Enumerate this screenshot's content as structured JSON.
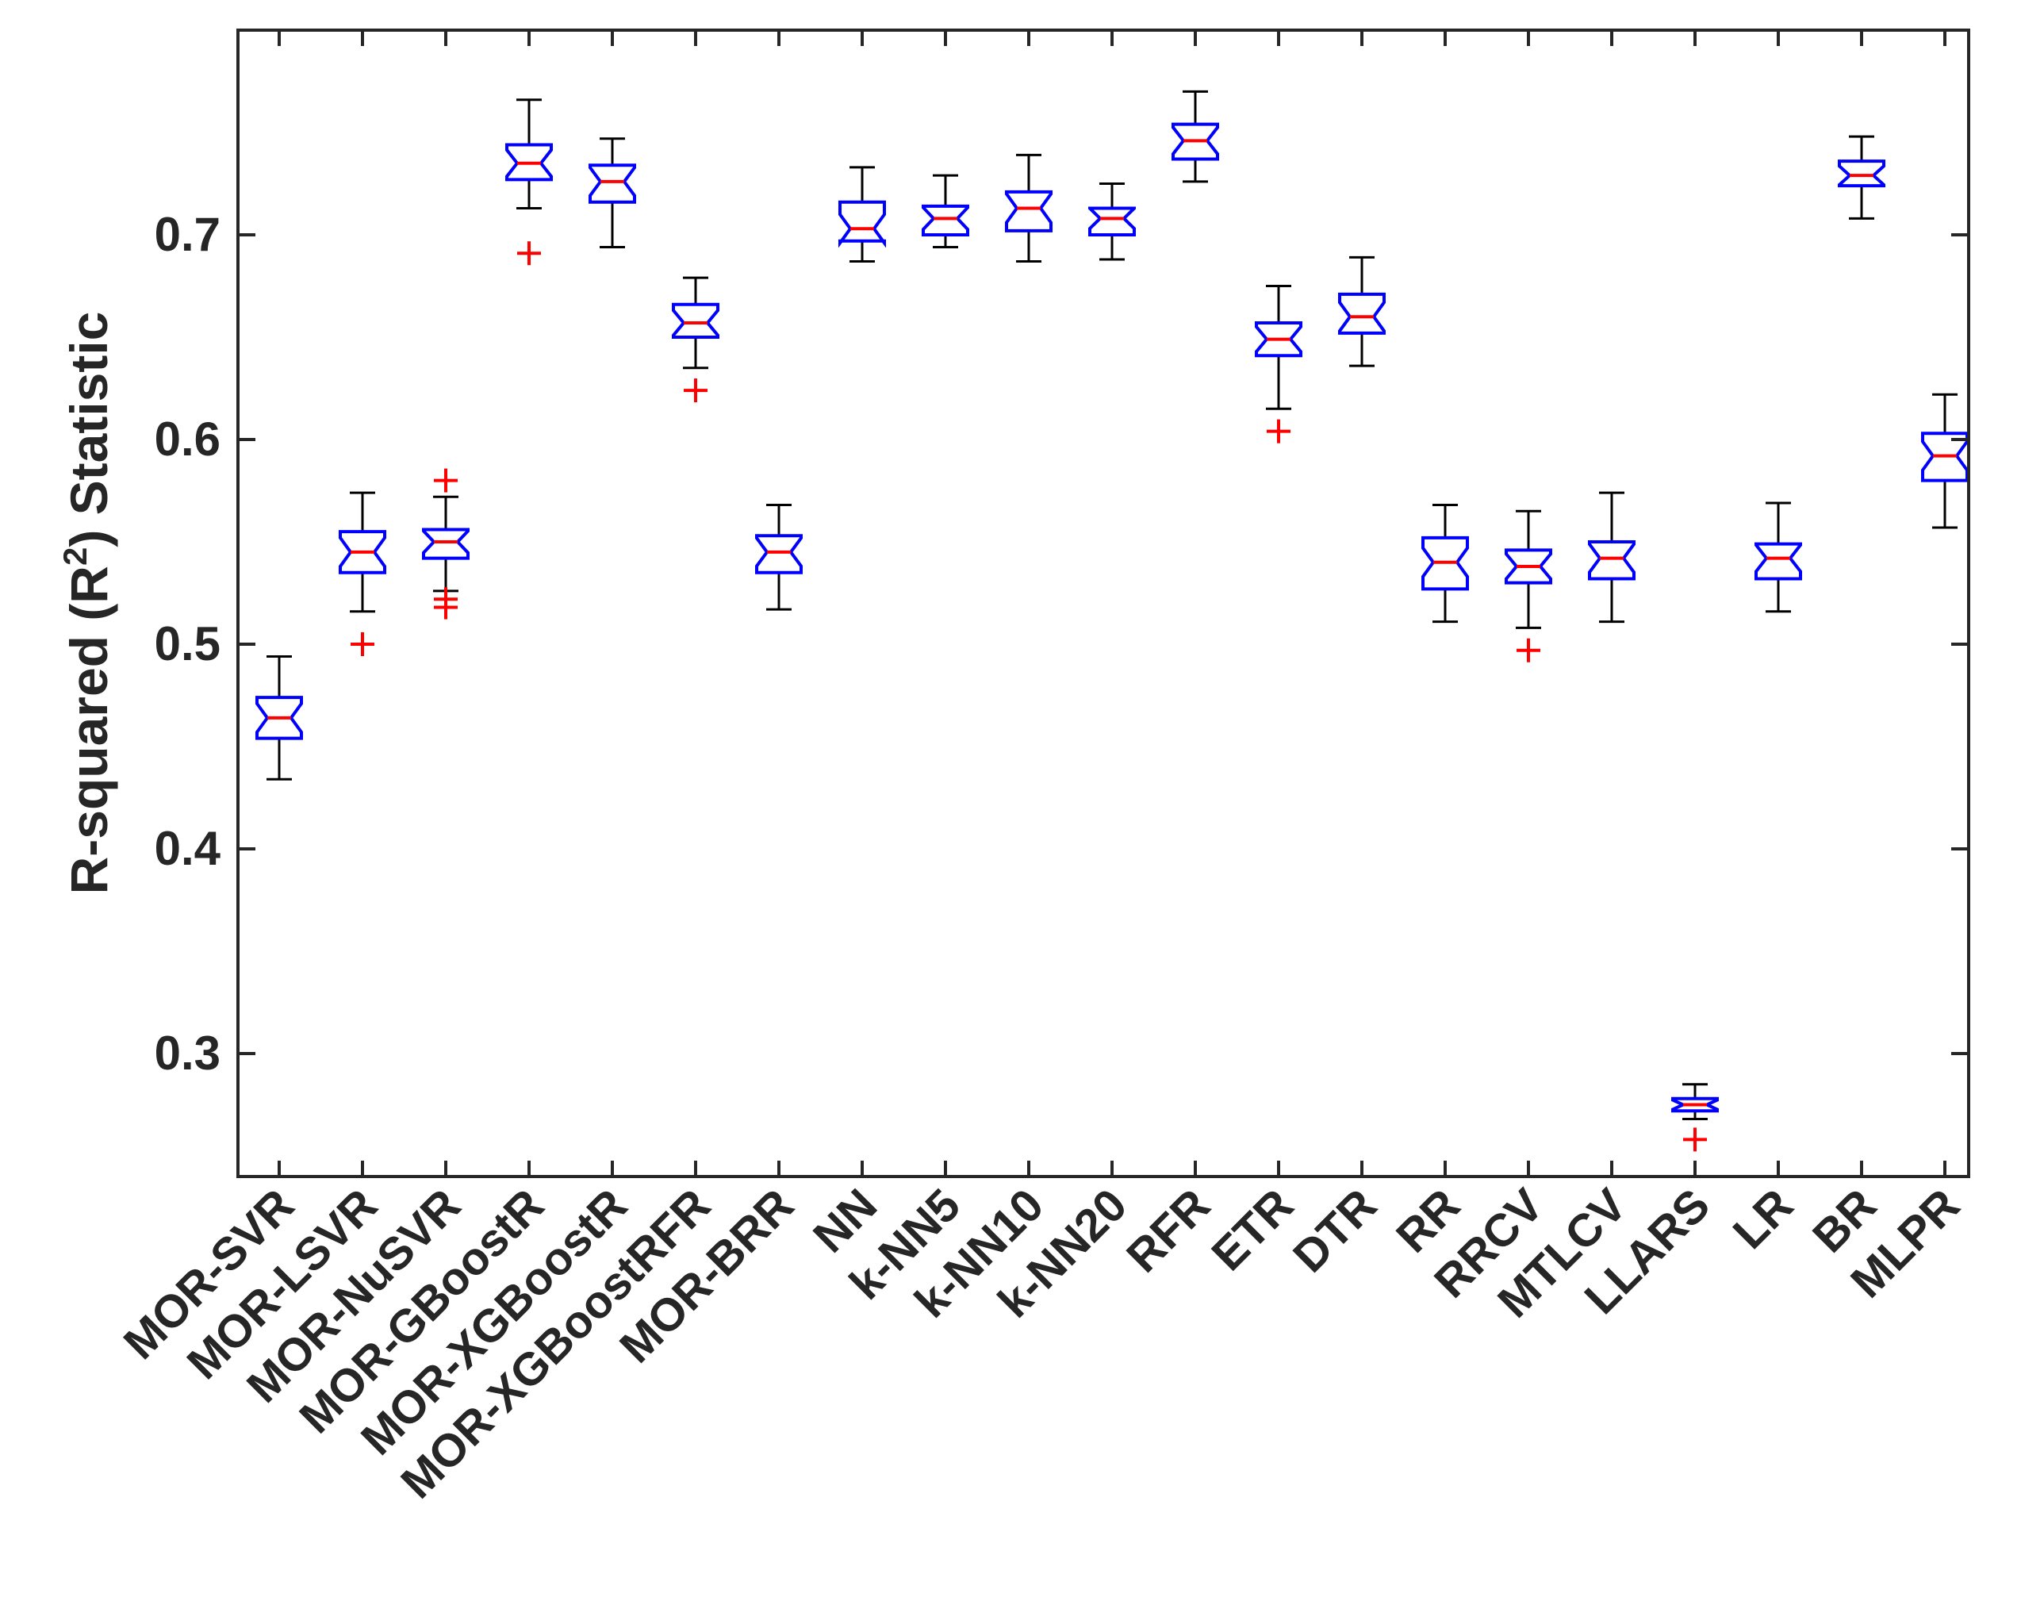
{
  "chart_data": {
    "type": "boxplot",
    "ylabel_parts": [
      "R-squared (R",
      "2",
      ") Statistic"
    ],
    "ylim": [
      0.235,
      0.785
    ],
    "yticks": [
      0.3,
      0.4,
      0.5,
      0.6,
      0.7
    ],
    "ytick_labels": [
      "0.3",
      "0.4",
      "0.5",
      "0.6",
      "0.7"
    ],
    "colors": {
      "box": "#0000ff",
      "median": "#ff0000",
      "whisker": "#000000",
      "outlier": "#ff0000",
      "axis": "#262626"
    },
    "categories": [
      "MOR-SVR",
      "MOR-LSVR",
      "MOR-NuSVR",
      "MOR-GBoostR",
      "MOR-XGBoostR",
      "MOR-XGBoostRFR",
      "MOR-BRR",
      "NN",
      "k-NN5",
      "k-NN10",
      "k-NN20",
      "RFR",
      "ETR",
      "DTR",
      "RR",
      "RRCV",
      "MTLCV",
      "LLARS",
      "LR",
      "BR",
      "MLPR"
    ],
    "boxes": [
      {
        "min": 0.434,
        "q1": 0.454,
        "median": 0.464,
        "q3": 0.474,
        "max": 0.494,
        "outliers": []
      },
      {
        "min": 0.516,
        "q1": 0.535,
        "median": 0.545,
        "q3": 0.555,
        "max": 0.574,
        "outliers": [
          0.5
        ]
      },
      {
        "min": 0.526,
        "q1": 0.542,
        "median": 0.55,
        "q3": 0.556,
        "max": 0.572,
        "outliers": [
          0.58,
          0.522,
          0.518
        ]
      },
      {
        "min": 0.713,
        "q1": 0.727,
        "median": 0.735,
        "q3": 0.744,
        "max": 0.766,
        "outliers": [
          0.691
        ]
      },
      {
        "min": 0.694,
        "q1": 0.716,
        "median": 0.726,
        "q3": 0.734,
        "max": 0.747,
        "outliers": []
      },
      {
        "min": 0.635,
        "q1": 0.65,
        "median": 0.657,
        "q3": 0.666,
        "max": 0.679,
        "outliers": [
          0.624
        ]
      },
      {
        "min": 0.517,
        "q1": 0.535,
        "median": 0.545,
        "q3": 0.553,
        "max": 0.568,
        "outliers": []
      },
      {
        "min": 0.687,
        "q1": 0.697,
        "median": 0.703,
        "q3": 0.716,
        "max": 0.733,
        "outliers": []
      },
      {
        "min": 0.694,
        "q1": 0.7,
        "median": 0.708,
        "q3": 0.714,
        "max": 0.729,
        "outliers": []
      },
      {
        "min": 0.687,
        "q1": 0.702,
        "median": 0.713,
        "q3": 0.721,
        "max": 0.739,
        "outliers": []
      },
      {
        "min": 0.688,
        "q1": 0.7,
        "median": 0.708,
        "q3": 0.713,
        "max": 0.725,
        "outliers": []
      },
      {
        "min": 0.726,
        "q1": 0.737,
        "median": 0.746,
        "q3": 0.754,
        "max": 0.77,
        "outliers": []
      },
      {
        "min": 0.615,
        "q1": 0.641,
        "median": 0.649,
        "q3": 0.657,
        "max": 0.675,
        "outliers": [
          0.604
        ]
      },
      {
        "min": 0.636,
        "q1": 0.652,
        "median": 0.66,
        "q3": 0.671,
        "max": 0.689,
        "outliers": []
      },
      {
        "min": 0.511,
        "q1": 0.527,
        "median": 0.54,
        "q3": 0.552,
        "max": 0.568,
        "outliers": []
      },
      {
        "min": 0.508,
        "q1": 0.53,
        "median": 0.538,
        "q3": 0.546,
        "max": 0.565,
        "outliers": [
          0.497
        ]
      },
      {
        "min": 0.511,
        "q1": 0.532,
        "median": 0.542,
        "q3": 0.55,
        "max": 0.574,
        "outliers": []
      },
      {
        "min": 0.268,
        "q1": 0.272,
        "median": 0.275,
        "q3": 0.278,
        "max": 0.285,
        "outliers": [
          0.258
        ]
      },
      {
        "min": 0.516,
        "q1": 0.532,
        "median": 0.542,
        "q3": 0.549,
        "max": 0.569,
        "outliers": []
      },
      {
        "min": 0.708,
        "q1": 0.724,
        "median": 0.729,
        "q3": 0.736,
        "max": 0.748,
        "outliers": []
      },
      {
        "min": 0.557,
        "q1": 0.58,
        "median": 0.592,
        "q3": 0.603,
        "max": 0.622,
        "outliers": []
      }
    ]
  }
}
